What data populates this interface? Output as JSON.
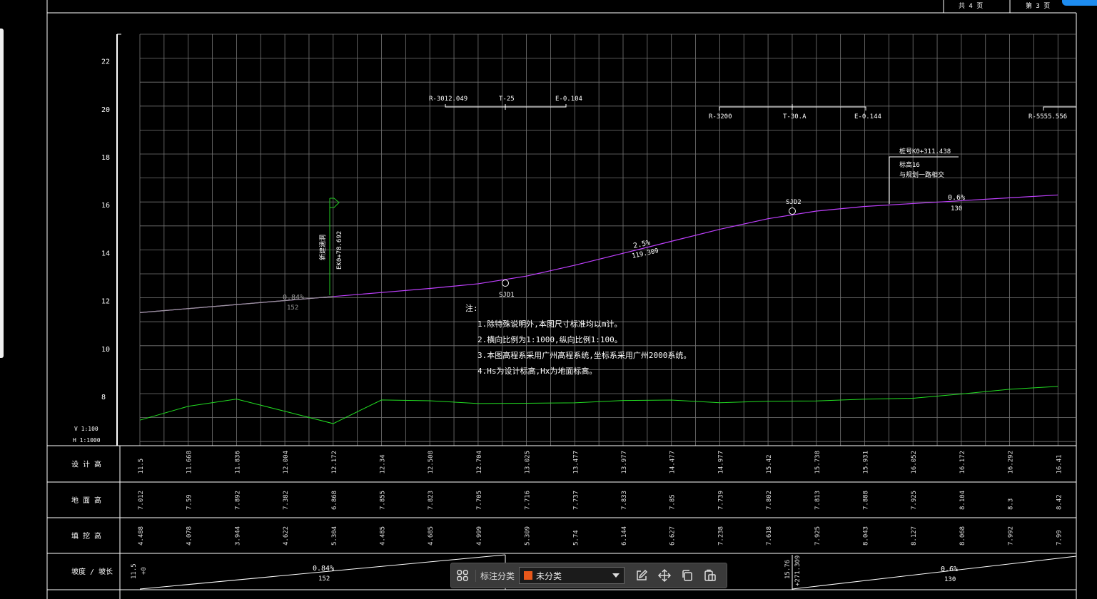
{
  "header": {
    "total_label": "共",
    "total_value": "4",
    "total_unit": "页",
    "current_label": "第",
    "current_value": "3",
    "current_unit": "页"
  },
  "scale": {
    "vertical": "V 1:100",
    "horizontal": "H 1:1000"
  },
  "profile": {
    "colors": {
      "design_line": "#c040ff",
      "ground_line": "#22dd22",
      "grid": "#777777",
      "text": "#ffffff",
      "marker": "#22cc22"
    },
    "elevation_labels": [
      "22",
      "20",
      "18",
      "16",
      "14",
      "12",
      "10",
      "8"
    ],
    "design_points": [
      11.5,
      11.668,
      11.836,
      12.004,
      12.172,
      12.34,
      12.508,
      12.704,
      13.025,
      13.477,
      13.977,
      14.477,
      14.977,
      15.42,
      15.738,
      15.931,
      16.052,
      16.172,
      16.292,
      16.41
    ],
    "ground_points": [
      7.012,
      7.59,
      7.892,
      7.382,
      6.868,
      7.855,
      7.823,
      7.705,
      7.716,
      7.737,
      7.833,
      7.85,
      7.739,
      7.802,
      7.813,
      7.888,
      7.925,
      8.104,
      8.3,
      8.42
    ],
    "vertical_curves": [
      {
        "r": "R-3012.049",
        "t": "T-25",
        "e": "E-0.104"
      },
      {
        "r": "R-3200",
        "t": "T-30.A",
        "e": "E-0.144"
      },
      {
        "r": "R-5555.556"
      }
    ],
    "pvi_labels": [
      "SJD1",
      "SJD2"
    ],
    "grade_labels": [
      {
        "grade": "0.84%",
        "length": "152"
      },
      {
        "grade": "2.5%",
        "length": "119.309"
      },
      {
        "grade": "0.6%",
        "length": "130"
      }
    ],
    "structure": {
      "name": "新建涵洞",
      "station": "EK0+78.692"
    },
    "intersection_note": {
      "station": "桩号K0+311.438",
      "elevation": "标高16",
      "desc": "与规划一路相交"
    },
    "notes": {
      "title": "注:",
      "lines": [
        "1.除特殊说明外,本图尺寸标准均以m计。",
        "2.横向比例为1:1000,纵向比例1:100。",
        "3.本图高程系采用广州高程系统,坐标系采用广州2000系统。",
        "4.Hs为设计标高,Hx为地面标高。"
      ]
    }
  },
  "table": {
    "rows": [
      {
        "label": "设 计 高",
        "values": [
          "11.5",
          "11.668",
          "11.836",
          "12.004",
          "12.172",
          "12.34",
          "12.508",
          "12.704",
          "13.025",
          "13.477",
          "13.977",
          "14.477",
          "14.977",
          "15.42",
          "15.738",
          "15.931",
          "16.052",
          "16.172",
          "16.292",
          "16.41"
        ]
      },
      {
        "label": "地 面 高",
        "values": [
          "7.012",
          "7.59",
          "7.892",
          "7.382",
          "6.868",
          "7.855",
          "7.823",
          "7.705",
          "7.716",
          "7.737",
          "7.833",
          "7.85",
          "7.739",
          "7.802",
          "7.813",
          "7.888",
          "7.925",
          "8.104",
          "8.3",
          "8.42"
        ]
      },
      {
        "label": "填 挖 高",
        "values": [
          "4.488",
          "4.078",
          "3.944",
          "4.622",
          "5.304",
          "4.485",
          "4.685",
          "4.999",
          "5.309",
          "5.74",
          "6.144",
          "6.627",
          "7.238",
          "7.618",
          "7.925",
          "8.043",
          "8.127",
          "8.068",
          "7.992",
          "7.99"
        ]
      }
    ],
    "slope_row": {
      "label": "坡度 / 坡长",
      "start_elev": "11.5",
      "start_station": "+0",
      "mid_elev": "15.76",
      "mid_station": "+271.309",
      "segments": [
        {
          "grade": "0.84%",
          "length": "152"
        },
        {
          "grade": "0.6%",
          "length": "130"
        }
      ]
    }
  },
  "toolbar": {
    "label": "标注分类",
    "category_value": "未分类",
    "category_color": "#e8581b",
    "icons": [
      "grid-apps-icon",
      "edit-icon",
      "move-icon",
      "copy-icon",
      "paste-icon"
    ]
  }
}
